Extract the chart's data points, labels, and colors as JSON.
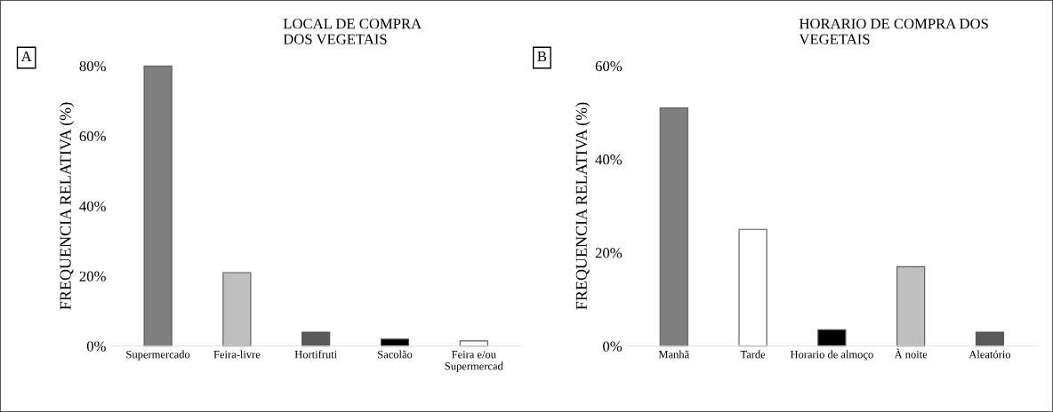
{
  "chart_data": [
    {
      "type": "bar",
      "title": "LOCAL DE COMPRA\nDOS VEGETAIS",
      "ylabel": "FREQUENCIA RELATIVA (%)",
      "annotations": [
        "A"
      ],
      "categories": [
        "Supermercado",
        "Feira-livre",
        "Hortifruti",
        "Sacolão",
        "Feira e/ou\nSupermercad"
      ],
      "values": [
        80,
        21,
        4,
        2,
        1.5
      ],
      "colors": [
        "#7f7f7f",
        "#bfbfbf",
        "#595959",
        "#000000",
        "#ffffff"
      ],
      "ylim": [
        0,
        80
      ],
      "yticks": [
        {
          "value": 0,
          "label": "0%"
        },
        {
          "value": 20,
          "label": "20%"
        },
        {
          "value": 40,
          "label": "40%"
        },
        {
          "value": 60,
          "label": "60%"
        },
        {
          "value": 80,
          "label": "80%"
        }
      ],
      "grid": false,
      "legend": false
    },
    {
      "type": "bar",
      "title": "HORARIO DE COMPRA DOS\nVEGETAIS",
      "ylabel": "FREQUENCIA RELATIVA (%)",
      "annotations": [
        "B"
      ],
      "categories": [
        "Manhã",
        "Tarde",
        "Horario de almoço",
        "À noite",
        "Aleatório"
      ],
      "values": [
        51,
        25,
        3.5,
        17,
        3
      ],
      "colors": [
        "#7f7f7f",
        "#ffffff",
        "#000000",
        "#bfbfbf",
        "#595959"
      ],
      "ylim": [
        0,
        60
      ],
      "yticks": [
        {
          "value": 0,
          "label": "0%"
        },
        {
          "value": 20,
          "label": "20%"
        },
        {
          "value": 40,
          "label": "40%"
        },
        {
          "value": 60,
          "label": "60%"
        }
      ],
      "grid": false,
      "legend": false
    }
  ]
}
